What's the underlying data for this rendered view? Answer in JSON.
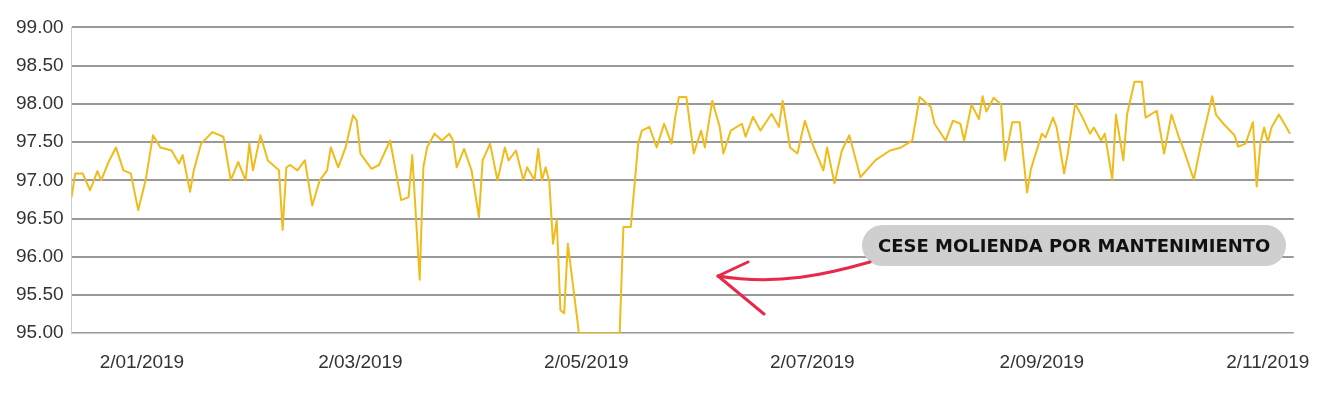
{
  "chart_data": {
    "type": "line",
    "annotations": [
      "CESE MOLIENDA POR MANTENIMIENTO"
    ],
    "x": [
      "2018-12-14",
      "2018-12-15",
      "2018-12-17",
      "2018-12-19",
      "2018-12-21",
      "2018-12-22",
      "2018-12-24",
      "2018-12-26",
      "2018-12-28",
      "2018-12-30",
      "2019-01-01",
      "2019-01-03",
      "2019-01-05",
      "2019-01-07",
      "2019-01-10",
      "2019-01-12",
      "2019-01-13",
      "2019-01-15",
      "2019-01-16",
      "2019-01-18",
      "2019-01-21",
      "2019-01-24",
      "2019-01-26",
      "2019-01-28",
      "2019-01-30",
      "2019-01-31",
      "2019-02-01",
      "2019-02-03",
      "2019-02-05",
      "2019-02-08",
      "2019-02-09",
      "2019-02-10",
      "2019-02-11",
      "2019-02-13",
      "2019-02-15",
      "2019-02-17",
      "2019-02-19",
      "2019-02-21",
      "2019-02-22",
      "2019-02-24",
      "2019-02-26",
      "2019-02-28",
      "2019-03-01",
      "2019-03-02",
      "2019-03-05",
      "2019-03-07",
      "2019-03-10",
      "2019-03-13",
      "2019-03-15",
      "2019-03-16",
      "2019-03-18",
      "2019-03-19",
      "2019-03-20",
      "2019-03-22",
      "2019-03-24",
      "2019-03-26",
      "2019-03-27",
      "2019-03-28",
      "2019-03-30",
      "2019-04-01",
      "2019-04-03",
      "2019-04-04",
      "2019-04-06",
      "2019-04-08",
      "2019-04-10",
      "2019-04-11",
      "2019-04-13",
      "2019-04-15",
      "2019-04-16",
      "2019-04-18",
      "2019-04-19",
      "2019-04-20",
      "2019-04-21",
      "2019-04-22",
      "2019-04-23",
      "2019-04-24",
      "2019-04-25",
      "2019-04-26",
      "2019-04-27",
      "2019-04-29",
      "2019-04-30",
      "2019-05-11",
      "2019-05-12",
      "2019-05-14",
      "2019-05-16",
      "2019-05-17",
      "2019-05-19",
      "2019-05-21",
      "2019-05-23",
      "2019-05-25",
      "2019-05-26",
      "2019-05-27",
      "2019-05-29",
      "2019-05-31",
      "2019-06-02",
      "2019-06-03",
      "2019-06-05",
      "2019-06-07",
      "2019-06-08",
      "2019-06-10",
      "2019-06-13",
      "2019-06-14",
      "2019-06-16",
      "2019-06-18",
      "2019-06-21",
      "2019-06-23",
      "2019-06-24",
      "2019-06-26",
      "2019-06-28",
      "2019-06-30",
      "2019-07-02",
      "2019-07-05",
      "2019-07-06",
      "2019-07-08",
      "2019-07-10",
      "2019-07-12",
      "2019-07-15",
      "2019-07-19",
      "2019-07-23",
      "2019-07-26",
      "2019-07-29",
      "2019-07-31",
      "2019-08-03",
      "2019-08-04",
      "2019-08-07",
      "2019-08-09",
      "2019-08-11",
      "2019-08-12",
      "2019-08-14",
      "2019-08-16",
      "2019-08-17",
      "2019-08-18",
      "2019-08-20",
      "2019-08-22",
      "2019-08-23",
      "2019-08-25",
      "2019-08-27",
      "2019-08-29",
      "2019-08-30",
      "2019-09-02",
      "2019-09-03",
      "2019-09-05",
      "2019-09-06",
      "2019-09-08",
      "2019-09-09",
      "2019-09-11",
      "2019-09-13",
      "2019-09-15",
      "2019-09-16",
      "2019-09-18",
      "2019-09-19",
      "2019-09-21",
      "2019-09-22",
      "2019-09-24",
      "2019-09-25",
      "2019-09-27",
      "2019-09-29",
      "2019-09-30",
      "2019-10-03",
      "2019-10-05",
      "2019-10-07",
      "2019-10-09",
      "2019-10-10",
      "2019-10-13",
      "2019-10-15",
      "2019-10-18",
      "2019-10-19",
      "2019-10-21",
      "2019-10-24",
      "2019-10-25",
      "2019-10-27",
      "2019-10-29",
      "2019-10-30",
      "2019-10-31",
      "2019-11-01",
      "2019-11-02",
      "2019-11-03",
      "2019-11-05",
      "2019-11-08"
    ],
    "series": [
      {
        "color": "#f0bc1c",
        "values": [
          96.78,
          97.09,
          97.09,
          96.87,
          97.12,
          97.0,
          97.24,
          97.43,
          97.13,
          97.09,
          96.61,
          97.0,
          97.59,
          97.43,
          97.39,
          97.22,
          97.33,
          96.85,
          97.13,
          97.48,
          97.63,
          97.57,
          97.0,
          97.24,
          97.0,
          97.48,
          97.13,
          97.59,
          97.26,
          97.13,
          96.35,
          97.17,
          97.2,
          97.13,
          97.26,
          96.67,
          97.0,
          97.13,
          97.43,
          97.17,
          97.43,
          97.85,
          97.78,
          97.35,
          97.15,
          97.2,
          97.52,
          96.74,
          96.78,
          97.33,
          95.7,
          97.17,
          97.43,
          97.61,
          97.52,
          97.61,
          97.52,
          97.17,
          97.41,
          97.13,
          96.52,
          97.26,
          97.48,
          97.0,
          97.43,
          97.26,
          97.39,
          97.0,
          97.17,
          97.0,
          97.41,
          97.0,
          97.17,
          96.98,
          96.17,
          96.48,
          95.3,
          95.26,
          96.17,
          95.39,
          95.0,
          95.0,
          96.39,
          96.39,
          97.48,
          97.65,
          97.7,
          97.43,
          97.74,
          97.48,
          97.83,
          98.09,
          98.09,
          97.35,
          97.65,
          97.43,
          98.04,
          97.7,
          97.35,
          97.65,
          97.74,
          97.57,
          97.83,
          97.65,
          97.87,
          97.7,
          98.04,
          97.43,
          97.35,
          97.78,
          97.48,
          97.13,
          97.43,
          96.96,
          97.39,
          97.59,
          97.04,
          97.26,
          97.39,
          97.43,
          97.52,
          98.09,
          97.96,
          97.74,
          97.52,
          97.78,
          97.74,
          97.52,
          97.99,
          97.8,
          98.1,
          97.9,
          98.08,
          97.99,
          97.26,
          97.76,
          97.76,
          96.84,
          97.14,
          97.61,
          97.56,
          97.82,
          97.69,
          97.09,
          97.35,
          98.0,
          97.82,
          97.61,
          97.69,
          97.52,
          97.61,
          97.01,
          97.86,
          97.26,
          97.86,
          98.29,
          98.29,
          97.82,
          97.91,
          97.35,
          97.86,
          97.56,
          97.44,
          97.01,
          97.48,
          98.1,
          97.86,
          97.74,
          97.59,
          97.44,
          97.48,
          97.76,
          96.92,
          97.48,
          97.69,
          97.5,
          97.69,
          97.86,
          97.61
        ]
      }
    ],
    "xlim": [
      "2018-12-14",
      "2019-11-09"
    ],
    "xticks": [
      {
        "value": "2019-01-02",
        "label": "2/01/2019"
      },
      {
        "value": "2019-03-02",
        "label": "2/03/2019"
      },
      {
        "value": "2019-05-02",
        "label": "2/05/2019"
      },
      {
        "value": "2019-07-02",
        "label": "2/07/2019"
      },
      {
        "value": "2019-09-02",
        "label": "2/09/2019"
      },
      {
        "value": "2019-11-02",
        "label": "2/11/2019"
      }
    ],
    "ylim": [
      95,
      99
    ],
    "yticks": [
      {
        "value": 95,
        "label": "95.00"
      },
      {
        "value": 95.5,
        "label": "95.50"
      },
      {
        "value": 96,
        "label": "96.00"
      },
      {
        "value": 96.5,
        "label": "96.50"
      },
      {
        "value": 97,
        "label": "97.00"
      },
      {
        "value": 97.5,
        "label": "97.50"
      },
      {
        "value": 98,
        "label": "98.00"
      },
      {
        "value": 98.5,
        "label": "98.50"
      },
      {
        "value": 99,
        "label": "99.00"
      }
    ],
    "grid": "y",
    "legend": false,
    "marker": "none",
    "line_style": "solid"
  }
}
